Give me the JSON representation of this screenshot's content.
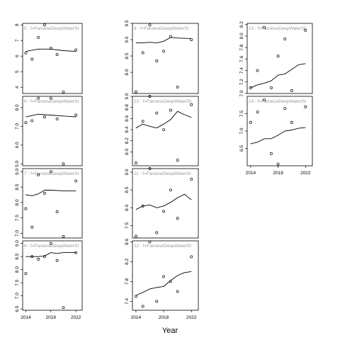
{
  "figure": {
    "x_axis_title": "Year",
    "strip_prefix": "f=FaroeseDeepWaterSt"
  },
  "chart_data": [
    {
      "type": "scatter",
      "panel": "5",
      "strip": "5 : f=FaroeseDeepWaterSt",
      "xlim": [
        2013.5,
        2023
      ],
      "ylim": [
        3.6,
        8.1
      ],
      "yticks": [
        "4",
        "5",
        "6",
        "7",
        "8"
      ],
      "yticks_at": [
        4,
        5,
        6,
        7,
        8
      ],
      "points_x": [
        2014,
        2015,
        2016,
        2017,
        2018,
        2019,
        2020,
        2022
      ],
      "points_y": [
        6.2,
        5.8,
        7.2,
        8.0,
        6.5,
        6.1,
        3.7,
        6.4
      ],
      "smooth_x": [
        2014,
        2016,
        2018,
        2020,
        2022
      ],
      "smooth_y": [
        6.3,
        6.45,
        6.45,
        6.35,
        6.3
      ]
    },
    {
      "type": "scatter",
      "panel": "6",
      "strip": "6 : f=FaroeseDeepWaterSt",
      "xlim": [
        2013.5,
        2023
      ],
      "ylim": [
        4.9,
        8.6
      ],
      "yticks": [
        "5.0",
        "6.0",
        "7.0",
        "8.0"
      ],
      "yticks_at": [
        5,
        6,
        7,
        8
      ],
      "points_x": [
        2014,
        2015,
        2016,
        2017,
        2018,
        2019,
        2020,
        2022
      ],
      "points_y": [
        7.2,
        7.3,
        8.5,
        7.5,
        8.5,
        7.4,
        5.0,
        7.6
      ],
      "smooth_x": [
        2014,
        2016,
        2018,
        2020,
        2022
      ],
      "smooth_y": [
        7.5,
        7.65,
        7.6,
        7.55,
        7.5
      ]
    },
    {
      "type": "scatter",
      "panel": "7",
      "strip": "7 : f=FaroeseDeepWaterSt",
      "xlim": [
        2013.5,
        2023
      ],
      "ylim": [
        6.85,
        9.1
      ],
      "yticks": [
        "7.0",
        "7.5",
        "8.0",
        "8.5",
        "9.0"
      ],
      "yticks_at": [
        7,
        7.5,
        8,
        8.5,
        9
      ],
      "points_x": [
        2014,
        2015,
        2016,
        2017,
        2018,
        2019,
        2020,
        2022
      ],
      "points_y": [
        7.8,
        7.2,
        8.9,
        8.3,
        9.0,
        7.7,
        6.9,
        8.7
      ],
      "smooth_x": [
        2014,
        2015,
        2016,
        2017,
        2018,
        2020,
        2022
      ],
      "smooth_y": [
        8.25,
        8.22,
        8.28,
        8.4,
        8.4,
        8.38,
        8.38
      ]
    },
    {
      "type": "scatter",
      "panel": "8",
      "strip": "8 : f=FaroeseDeepWaterSt",
      "xlim": [
        2013.5,
        2023
      ],
      "ylim": [
        6.45,
        9.1
      ],
      "yticks": [
        "6.5",
        "7.0",
        "7.5",
        "8.0",
        "8.5",
        "9.0"
      ],
      "yticks_at": [
        6.5,
        7,
        7.5,
        8,
        8.5,
        9
      ],
      "xticks": [
        "2014",
        "2018",
        "2022"
      ],
      "xticks_at": [
        2014,
        2018,
        2022
      ],
      "points_x": [
        2014,
        2015,
        2016,
        2017,
        2018,
        2019,
        2020,
        2022
      ],
      "points_y": [
        7.85,
        8.5,
        8.4,
        8.5,
        9.0,
        8.35,
        6.55,
        8.65
      ],
      "smooth_x": [
        2014,
        2016,
        2017,
        2018,
        2019,
        2020,
        2022
      ],
      "smooth_y": [
        8.5,
        8.5,
        8.52,
        8.65,
        8.62,
        8.65,
        8.65
      ]
    },
    {
      "type": "scatter",
      "panel": "9",
      "strip": "9 : f=FaroeseDeepWaterSt",
      "xlim": [
        2013.5,
        2023
      ],
      "ylim": [
        7.35,
        9.5
      ],
      "yticks": [
        "8.0",
        "8.5",
        "9.0",
        "9.5"
      ],
      "yticks_at": [
        8,
        8.5,
        9,
        9.5
      ],
      "points_x": [
        2014,
        2015,
        2016,
        2017,
        2018,
        2019,
        2020,
        2022
      ],
      "points_y": [
        7.4,
        8.6,
        9.45,
        8.35,
        8.65,
        9.1,
        7.55,
        9.0
      ],
      "smooth_x": [
        2014,
        2015,
        2016,
        2017,
        2018,
        2019,
        2020,
        2022
      ],
      "smooth_y": [
        8.9,
        8.9,
        8.92,
        8.9,
        8.95,
        9.07,
        9.05,
        9.03
      ]
    },
    {
      "type": "scatter",
      "panel": "10",
      "strip": "10 : f=FaroeseDeepWaterSt",
      "xlim": [
        2013.5,
        2023
      ],
      "ylim": [
        7.75,
        9.0
      ],
      "yticks": [
        "8.0",
        "8.2",
        "8.4",
        "8.6",
        "8.8",
        "9.0"
      ],
      "yticks_at": [
        8,
        8.2,
        8.4,
        8.6,
        8.8,
        9
      ],
      "points_x": [
        2014,
        2015,
        2016,
        2017,
        2018,
        2019,
        2020,
        2022
      ],
      "points_y": [
        7.8,
        8.55,
        9.0,
        8.7,
        8.4,
        8.75,
        7.85,
        8.85
      ],
      "smooth_x": [
        2014,
        2015,
        2016,
        2017,
        2018,
        2019,
        2020,
        2021,
        2022
      ],
      "smooth_y": [
        8.43,
        8.5,
        8.46,
        8.43,
        8.5,
        8.58,
        8.73,
        8.67,
        8.62
      ]
    },
    {
      "type": "scatter",
      "panel": "11",
      "strip": "11 : f=FaroeseDeepWaterSt",
      "xlim": [
        2013.5,
        2023
      ],
      "ylim": [
        7.15,
        9.1
      ],
      "yticks": [
        "7.5",
        "8.0",
        "8.5",
        "9.0"
      ],
      "yticks_at": [
        7.5,
        8,
        8.5,
        9
      ],
      "points_x": [
        2014,
        2015,
        2016,
        2017,
        2018,
        2019,
        2020,
        2022
      ],
      "points_y": [
        7.2,
        8.05,
        9.1,
        7.3,
        7.9,
        8.5,
        7.7,
        8.8
      ],
      "smooth_x": [
        2014,
        2015,
        2016,
        2017,
        2018,
        2019,
        2020,
        2021,
        2022
      ],
      "smooth_y": [
        7.95,
        8.05,
        8.08,
        8.0,
        8.05,
        8.15,
        8.28,
        8.38,
        8.22
      ]
    },
    {
      "type": "scatter",
      "panel": "12",
      "strip": "12 : f=FaroeseDeepWaterSt",
      "xlim": [
        2013.5,
        2023
      ],
      "ylim": [
        7.22,
        8.62
      ],
      "yticks": [
        "7.4",
        "7.8",
        "8.2",
        "8.6"
      ],
      "yticks_at": [
        7.4,
        7.8,
        8.2,
        8.6
      ],
      "xticks": [
        "2014",
        "2018",
        "2022"
      ],
      "xticks_at": [
        2014,
        2018,
        2022
      ],
      "points_x": [
        2014,
        2015,
        2016,
        2017,
        2018,
        2019,
        2020,
        2022
      ],
      "points_y": [
        7.5,
        7.3,
        8.6,
        7.4,
        7.9,
        7.8,
        7.6,
        8.3
      ],
      "smooth_x": [
        2014,
        2015,
        2016,
        2017,
        2018,
        2019,
        2020,
        2021,
        2022
      ],
      "smooth_y": [
        7.52,
        7.58,
        7.65,
        7.68,
        7.7,
        7.82,
        7.92,
        7.98,
        8.0
      ]
    },
    {
      "type": "scatter",
      "panel": "13",
      "strip": "13 : f=FaroeseDeepWaterSt",
      "xlim": [
        2013.5,
        2023
      ],
      "ylim": [
        7.0,
        8.22
      ],
      "yticks": [
        "7.0",
        "7.2",
        "7.4",
        "7.6",
        "7.8",
        "8.0",
        "8.2"
      ],
      "yticks_at": [
        7,
        7.2,
        7.4,
        7.6,
        7.8,
        8,
        8.2
      ],
      "points_x": [
        2014,
        2015,
        2016,
        2017,
        2018,
        2019,
        2020,
        2022
      ],
      "points_y": [
        7.1,
        7.4,
        8.15,
        7.1,
        7.65,
        7.95,
        7.05,
        8.1
      ],
      "smooth_x": [
        2014,
        2015,
        2016,
        2017,
        2018,
        2019,
        2020,
        2021,
        2022
      ],
      "smooth_y": [
        7.1,
        7.15,
        7.18,
        7.22,
        7.32,
        7.34,
        7.42,
        7.5,
        7.52
      ]
    },
    {
      "type": "scatter",
      "panel": "14",
      "strip": "14 : f=FaroeseDeepWaterSt",
      "xlim": [
        2013.5,
        2023
      ],
      "ylim": [
        6.0,
        8.0
      ],
      "yticks": [
        "6.5",
        "7.0",
        "7.5"
      ],
      "yticks_at": [
        6.5,
        7,
        7.5
      ],
      "xticks": [
        "2014",
        "2018",
        "2022"
      ],
      "xticks_at": [
        2014,
        2018,
        2022
      ],
      "points_x": [
        2014,
        2015,
        2016,
        2017,
        2018,
        2019,
        2020,
        2022
      ],
      "points_y": [
        7.25,
        7.55,
        7.9,
        6.35,
        6.05,
        7.65,
        7.25,
        7.7
      ],
      "smooth_x": [
        2014,
        2015,
        2016,
        2017,
        2018,
        2019,
        2020,
        2021,
        2022
      ],
      "smooth_y": [
        6.63,
        6.68,
        6.78,
        6.78,
        6.88,
        7.0,
        7.03,
        7.08,
        7.1
      ]
    }
  ]
}
